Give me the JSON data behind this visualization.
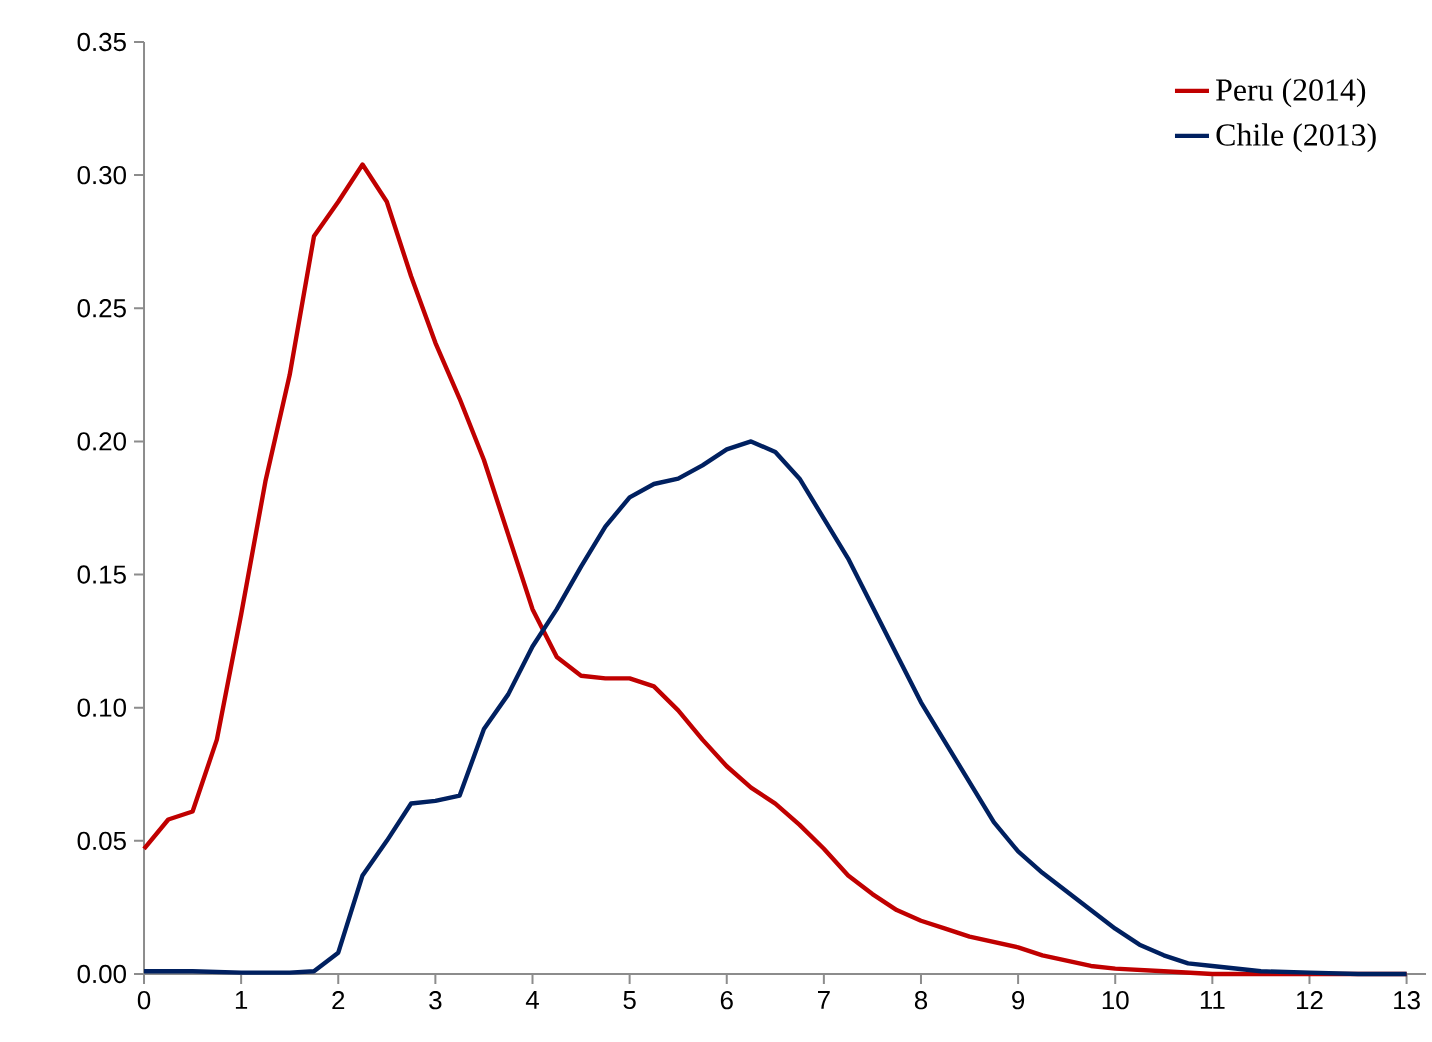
{
  "chart_data": {
    "type": "line",
    "xlim": [
      0,
      13.2
    ],
    "ylim": [
      0,
      0.35
    ],
    "xticks": [
      0,
      1,
      2,
      3,
      4,
      5,
      6,
      7,
      8,
      9,
      10,
      11,
      12,
      13
    ],
    "yticks": [
      {
        "value": 0,
        "label": "0.00"
      },
      {
        "value": 0.05,
        "label": "0.05"
      },
      {
        "value": 0.1,
        "label": "0.10"
      },
      {
        "value": 0.15,
        "label": "0.15"
      },
      {
        "value": 0.2,
        "label": "0.20"
      },
      {
        "value": 0.25,
        "label": "0.25"
      },
      {
        "value": 0.3,
        "label": "0.30"
      },
      {
        "value": 0.35,
        "label": "0.35"
      }
    ],
    "grid": false,
    "legend": "top right",
    "marker": "none",
    "line_style": "solid",
    "series": [
      {
        "name": "Peru (2014)",
        "color": "#c00000",
        "x": [
          0,
          0.25,
          0.5,
          0.75,
          1,
          1.25,
          1.5,
          1.75,
          2,
          2.25,
          2.5,
          2.75,
          3,
          3.25,
          3.5,
          3.75,
          4,
          4.25,
          4.5,
          4.75,
          5,
          5.25,
          5.5,
          5.75,
          6,
          6.25,
          6.5,
          6.75,
          7,
          7.25,
          7.5,
          7.75,
          8,
          8.25,
          8.5,
          8.75,
          9,
          9.25,
          9.5,
          9.75,
          10,
          10.5,
          11,
          13
        ],
        "values": [
          0.047,
          0.058,
          0.061,
          0.088,
          0.135,
          0.185,
          0.225,
          0.277,
          0.29,
          0.304,
          0.29,
          0.262,
          0.237,
          0.216,
          0.193,
          0.165,
          0.137,
          0.119,
          0.112,
          0.111,
          0.111,
          0.108,
          0.099,
          0.088,
          0.078,
          0.07,
          0.064,
          0.056,
          0.047,
          0.037,
          0.03,
          0.024,
          0.02,
          0.017,
          0.014,
          0.012,
          0.01,
          0.007,
          0.005,
          0.003,
          0.002,
          0.001,
          0.0,
          0.0
        ]
      },
      {
        "name": "Chile (2013)",
        "color": "#002060",
        "x": [
          0,
          0.5,
          1,
          1.5,
          1.75,
          2,
          2.25,
          2.5,
          2.75,
          3,
          3.25,
          3.5,
          3.75,
          4,
          4.25,
          4.5,
          4.75,
          5,
          5.25,
          5.5,
          5.75,
          6,
          6.25,
          6.5,
          6.75,
          7,
          7.25,
          7.5,
          7.75,
          8,
          8.25,
          8.5,
          8.75,
          9,
          9.25,
          9.5,
          9.75,
          10,
          10.25,
          10.5,
          10.75,
          11,
          11.5,
          12,
          12.5,
          13
        ],
        "values": [
          0.001,
          0.001,
          0.0005,
          0.0005,
          0.001,
          0.008,
          0.037,
          0.05,
          0.064,
          0.065,
          0.067,
          0.092,
          0.105,
          0.123,
          0.137,
          0.153,
          0.168,
          0.179,
          0.184,
          0.186,
          0.191,
          0.197,
          0.2,
          0.196,
          0.186,
          0.171,
          0.156,
          0.138,
          0.12,
          0.102,
          0.087,
          0.072,
          0.057,
          0.046,
          0.038,
          0.031,
          0.024,
          0.017,
          0.011,
          0.007,
          0.004,
          0.003,
          0.001,
          0.0005,
          0,
          0
        ]
      }
    ]
  }
}
